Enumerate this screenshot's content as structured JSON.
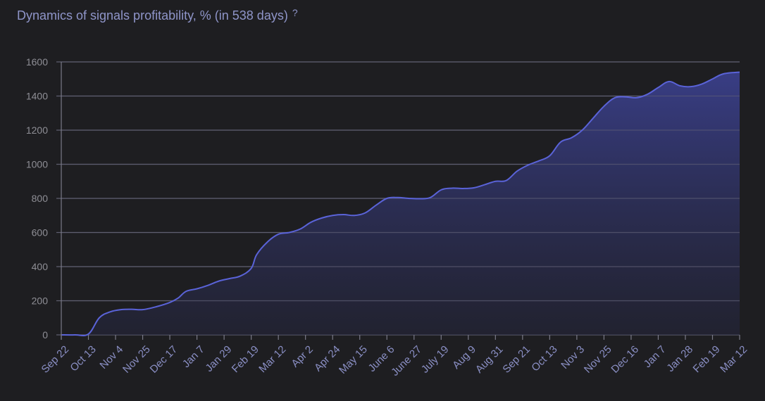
{
  "header": {
    "title": "Dynamics of signals profitability, % (in 538 days)",
    "help_symbol": "?"
  },
  "chart_data": {
    "type": "area",
    "title": "Dynamics of signals profitability, % (in 538 days)",
    "xlabel": "",
    "ylabel": "",
    "ylim": [
      0,
      1600
    ],
    "yticks": [
      0,
      200,
      400,
      600,
      800,
      1000,
      1200,
      1400,
      1600
    ],
    "grid": true,
    "categories": [
      "Sep 22",
      "Oct 13",
      "Nov 4",
      "Nov 25",
      "Dec 17",
      "Jan 7",
      "Jan 29",
      "Feb 19",
      "Mar 12",
      "Apr 2",
      "Apr 24",
      "May 15",
      "June 6",
      "June 27",
      "July 19",
      "Aug 9",
      "Aug 31",
      "Sep 21",
      "Oct 13",
      "Nov 3",
      "Nov 25",
      "Dec 16",
      "Jan 7",
      "Jan 28",
      "Feb 19",
      "Mar 12"
    ],
    "series": [
      {
        "values": [
          [
            0,
            0
          ],
          [
            0.5,
            0
          ],
          [
            1,
            5
          ],
          [
            1.4,
            100
          ],
          [
            1.8,
            135
          ],
          [
            2.2,
            148
          ],
          [
            2.6,
            150
          ],
          [
            3,
            148
          ],
          [
            3.5,
            165
          ],
          [
            4,
            190
          ],
          [
            4.3,
            215
          ],
          [
            4.6,
            255
          ],
          [
            5,
            270
          ],
          [
            5.4,
            290
          ],
          [
            5.8,
            315
          ],
          [
            6.2,
            330
          ],
          [
            6.6,
            345
          ],
          [
            7,
            390
          ],
          [
            7.2,
            470
          ],
          [
            7.6,
            545
          ],
          [
            8,
            590
          ],
          [
            8.4,
            600
          ],
          [
            8.8,
            620
          ],
          [
            9.2,
            660
          ],
          [
            9.6,
            685
          ],
          [
            10,
            700
          ],
          [
            10.4,
            705
          ],
          [
            10.8,
            700
          ],
          [
            11.2,
            715
          ],
          [
            11.6,
            760
          ],
          [
            12,
            800
          ],
          [
            12.4,
            805
          ],
          [
            12.8,
            800
          ],
          [
            13.2,
            798
          ],
          [
            13.6,
            805
          ],
          [
            14,
            850
          ],
          [
            14.4,
            860
          ],
          [
            14.8,
            858
          ],
          [
            15.2,
            862
          ],
          [
            15.6,
            880
          ],
          [
            16,
            900
          ],
          [
            16.4,
            905
          ],
          [
            16.8,
            960
          ],
          [
            17.2,
            995
          ],
          [
            17.6,
            1020
          ],
          [
            18,
            1050
          ],
          [
            18.4,
            1130
          ],
          [
            18.8,
            1155
          ],
          [
            19.2,
            1200
          ],
          [
            19.6,
            1270
          ],
          [
            20,
            1340
          ],
          [
            20.4,
            1390
          ],
          [
            20.8,
            1395
          ],
          [
            21.2,
            1390
          ],
          [
            21.6,
            1410
          ],
          [
            22,
            1450
          ],
          [
            22.4,
            1485
          ],
          [
            22.8,
            1460
          ],
          [
            23.2,
            1455
          ],
          [
            23.6,
            1470
          ],
          [
            24,
            1500
          ],
          [
            24.4,
            1530
          ],
          [
            25,
            1540
          ]
        ]
      }
    ],
    "colors": {
      "line": "#5a63d8",
      "fill_top": "#3a3f8a",
      "fill_bottom": "#24253a",
      "grid": "#5e5e70",
      "axis": "#7a7a88"
    }
  }
}
